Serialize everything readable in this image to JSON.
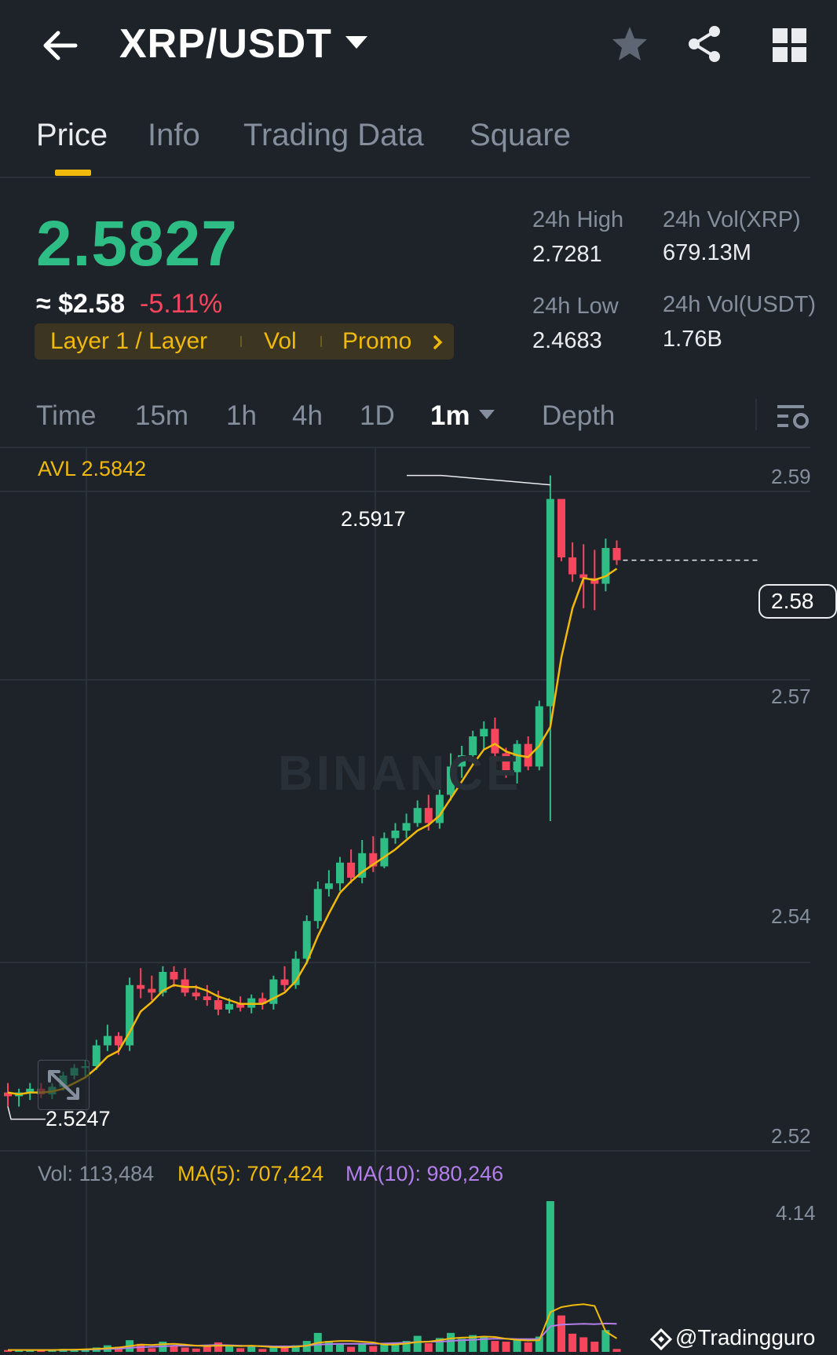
{
  "header": {
    "title": "XRP/USDT",
    "icons": [
      "back-arrow-icon",
      "caret-down-icon",
      "star-icon",
      "share-icon",
      "grid-icon"
    ]
  },
  "tabs": [
    {
      "label": "Price",
      "active": true
    },
    {
      "label": "Info"
    },
    {
      "label": "Trading Data"
    },
    {
      "label": "Square"
    }
  ],
  "price": {
    "last": "2.5827",
    "usd": "≈ $2.58",
    "change": "-5.11%"
  },
  "tags": {
    "layer": "Layer 1 / Layer",
    "vol": "Vol",
    "promo": "Promo"
  },
  "stats": {
    "high_label": "24h High",
    "high_value": "2.7281",
    "low_label": "24h Low",
    "low_value": "2.4683",
    "vol_xrp_label": "24h Vol(XRP)",
    "vol_xrp_value": "679.13M",
    "vol_usdt_label": "24h Vol(USDT)",
    "vol_usdt_value": "1.76B"
  },
  "intervals": {
    "time": "Time",
    "m15": "15m",
    "h1": "1h",
    "h4": "4h",
    "d1": "1D",
    "m1": "1m",
    "depth": "Depth"
  },
  "chart": {
    "avl": "AVL 2.5842",
    "y_labels": [
      "2.59",
      "2.57",
      "2.54",
      "2.52"
    ],
    "current_price_tag": "2.58",
    "high_marker": "2.5917",
    "low_marker": "2.5247",
    "watermark": "BINANCE",
    "vol_label": "Vol: 113,484",
    "ma5_label": "MA(5): 707,424",
    "ma10_label": "MA(10): 980,246",
    "vol_y_top": "4.14",
    "credit": "@Tradingguro",
    "colors": {
      "up": "#2ebd85",
      "down": "#f6465d",
      "ma5": "#f0b90b",
      "ma10": "#b37feb",
      "grid": "#2b3139"
    }
  },
  "chart_data": {
    "type": "candlestick",
    "ylim": [
      2.52,
      2.595
    ],
    "y_ticks": [
      2.59,
      2.57,
      2.54,
      2.52
    ],
    "candles": [
      {
        "o": 2.5262,
        "h": 2.5272,
        "l": 2.5247,
        "c": 2.5258
      },
      {
        "o": 2.5258,
        "h": 2.5266,
        "l": 2.5247,
        "c": 2.5262
      },
      {
        "o": 2.5262,
        "h": 2.5272,
        "l": 2.5254,
        "c": 2.5266
      },
      {
        "o": 2.5266,
        "h": 2.5272,
        "l": 2.5256,
        "c": 2.526
      },
      {
        "o": 2.526,
        "h": 2.5272,
        "l": 2.5255,
        "c": 2.5268
      },
      {
        "o": 2.5268,
        "h": 2.5284,
        "l": 2.5264,
        "c": 2.528
      },
      {
        "o": 2.528,
        "h": 2.5292,
        "l": 2.5276,
        "c": 2.5288
      },
      {
        "o": 2.5288,
        "h": 2.5296,
        "l": 2.5278,
        "c": 2.529
      },
      {
        "o": 2.529,
        "h": 2.5318,
        "l": 2.5286,
        "c": 2.5312
      },
      {
        "o": 2.5312,
        "h": 2.5334,
        "l": 2.5306,
        "c": 2.5322
      },
      {
        "o": 2.5322,
        "h": 2.5326,
        "l": 2.5302,
        "c": 2.5312
      },
      {
        "o": 2.5312,
        "h": 2.5384,
        "l": 2.5306,
        "c": 2.5376
      },
      {
        "o": 2.5376,
        "h": 2.5394,
        "l": 2.5362,
        "c": 2.5372
      },
      {
        "o": 2.5372,
        "h": 2.5386,
        "l": 2.536,
        "c": 2.5368
      },
      {
        "o": 2.5368,
        "h": 2.5396,
        "l": 2.5364,
        "c": 2.539
      },
      {
        "o": 2.539,
        "h": 2.5396,
        "l": 2.5374,
        "c": 2.5382
      },
      {
        "o": 2.5382,
        "h": 2.5394,
        "l": 2.5364,
        "c": 2.5368
      },
      {
        "o": 2.5368,
        "h": 2.5376,
        "l": 2.536,
        "c": 2.5364
      },
      {
        "o": 2.5364,
        "h": 2.5376,
        "l": 2.5354,
        "c": 2.536
      },
      {
        "o": 2.536,
        "h": 2.537,
        "l": 2.5344,
        "c": 2.535
      },
      {
        "o": 2.535,
        "h": 2.5362,
        "l": 2.5346,
        "c": 2.5356
      },
      {
        "o": 2.5356,
        "h": 2.5364,
        "l": 2.5348,
        "c": 2.5352
      },
      {
        "o": 2.5352,
        "h": 2.5366,
        "l": 2.5346,
        "c": 2.5362
      },
      {
        "o": 2.5362,
        "h": 2.5368,
        "l": 2.535,
        "c": 2.5356
      },
      {
        "o": 2.5356,
        "h": 2.5386,
        "l": 2.535,
        "c": 2.5382
      },
      {
        "o": 2.5382,
        "h": 2.5396,
        "l": 2.537,
        "c": 2.5376
      },
      {
        "o": 2.5376,
        "h": 2.5412,
        "l": 2.5372,
        "c": 2.5404
      },
      {
        "o": 2.5404,
        "h": 2.545,
        "l": 2.5398,
        "c": 2.5444
      },
      {
        "o": 2.5444,
        "h": 2.5486,
        "l": 2.5436,
        "c": 2.5478
      },
      {
        "o": 2.5478,
        "h": 2.5498,
        "l": 2.547,
        "c": 2.5484
      },
      {
        "o": 2.5484,
        "h": 2.5512,
        "l": 2.5476,
        "c": 2.5506
      },
      {
        "o": 2.5506,
        "h": 2.552,
        "l": 2.5484,
        "c": 2.549
      },
      {
        "o": 2.549,
        "h": 2.553,
        "l": 2.5484,
        "c": 2.5516
      },
      {
        "o": 2.5516,
        "h": 2.5534,
        "l": 2.5496,
        "c": 2.5502
      },
      {
        "o": 2.5502,
        "h": 2.5538,
        "l": 2.55,
        "c": 2.5532
      },
      {
        "o": 2.5532,
        "h": 2.5548,
        "l": 2.5526,
        "c": 2.554
      },
      {
        "o": 2.554,
        "h": 2.5558,
        "l": 2.5532,
        "c": 2.5548
      },
      {
        "o": 2.5548,
        "h": 2.5572,
        "l": 2.5544,
        "c": 2.5564
      },
      {
        "o": 2.5564,
        "h": 2.5578,
        "l": 2.554,
        "c": 2.5548
      },
      {
        "o": 2.5548,
        "h": 2.5586,
        "l": 2.5542,
        "c": 2.5578
      },
      {
        "o": 2.5578,
        "h": 2.5622,
        "l": 2.5572,
        "c": 2.5608
      },
      {
        "o": 2.5608,
        "h": 2.563,
        "l": 2.5596,
        "c": 2.562
      },
      {
        "o": 2.562,
        "h": 2.5646,
        "l": 2.561,
        "c": 2.564
      },
      {
        "o": 2.564,
        "h": 2.5656,
        "l": 2.5626,
        "c": 2.5648
      },
      {
        "o": 2.5648,
        "h": 2.566,
        "l": 2.5614,
        "c": 2.5622
      },
      {
        "o": 2.5622,
        "h": 2.5628,
        "l": 2.5596,
        "c": 2.5602
      },
      {
        "o": 2.5602,
        "h": 2.5636,
        "l": 2.559,
        "c": 2.5632
      },
      {
        "o": 2.5632,
        "h": 2.564,
        "l": 2.5604,
        "c": 2.5608
      },
      {
        "o": 2.5608,
        "h": 2.5678,
        "l": 2.5604,
        "c": 2.5672
      },
      {
        "o": 2.5672,
        "h": 2.5917,
        "l": 2.555,
        "c": 2.5892
      },
      {
        "o": 2.5892,
        "h": 2.5892,
        "l": 2.5826,
        "c": 2.583
      },
      {
        "o": 2.583,
        "h": 2.5846,
        "l": 2.5804,
        "c": 2.5812
      },
      {
        "o": 2.5812,
        "h": 2.5844,
        "l": 2.5776,
        "c": 2.5808
      },
      {
        "o": 2.5808,
        "h": 2.5838,
        "l": 2.5774,
        "c": 2.5802
      },
      {
        "o": 2.5802,
        "h": 2.585,
        "l": 2.5794,
        "c": 2.584
      },
      {
        "o": 2.584,
        "h": 2.5848,
        "l": 2.5822,
        "c": 2.5827
      }
    ],
    "ma_line": [
      2.5262,
      2.526,
      2.5262,
      2.5262,
      2.5263,
      2.5266,
      2.5272,
      2.5278,
      2.5288,
      2.53,
      2.5306,
      2.5326,
      2.5348,
      2.5358,
      2.537,
      2.5376,
      2.5374,
      2.5374,
      2.537,
      2.5364,
      2.536,
      2.5356,
      2.5356,
      2.5356,
      2.5362,
      2.5368,
      2.538,
      2.54,
      2.5428,
      2.5452,
      2.5474,
      2.5486,
      2.5496,
      2.5504,
      2.5512,
      2.552,
      2.553,
      2.554,
      2.5546,
      2.5556,
      2.5574,
      2.5592,
      2.561,
      2.5626,
      2.5632,
      2.5624,
      2.562,
      2.5618,
      2.563,
      2.565,
      2.5724,
      2.5776,
      2.5808,
      2.5806,
      2.581,
      2.5818
    ],
    "volume": {
      "ymax": 4.14,
      "bars": [
        0.05,
        0.04,
        0.05,
        0.04,
        0.06,
        0.08,
        0.07,
        0.06,
        0.12,
        0.18,
        0.14,
        0.32,
        0.22,
        0.1,
        0.28,
        0.16,
        0.12,
        0.09,
        0.14,
        0.26,
        0.16,
        0.1,
        0.14,
        0.08,
        0.16,
        0.12,
        0.18,
        0.3,
        0.52,
        0.3,
        0.22,
        0.14,
        0.24,
        0.16,
        0.2,
        0.26,
        0.3,
        0.44,
        0.24,
        0.38,
        0.52,
        0.36,
        0.46,
        0.4,
        0.3,
        0.28,
        0.34,
        0.26,
        0.42,
        4.14,
        1.0,
        0.5,
        0.4,
        0.28,
        0.6,
        0.08
      ],
      "ma5": [
        0.05,
        0.05,
        0.05,
        0.05,
        0.05,
        0.06,
        0.06,
        0.07,
        0.08,
        0.1,
        0.12,
        0.16,
        0.2,
        0.19,
        0.21,
        0.22,
        0.2,
        0.17,
        0.16,
        0.17,
        0.17,
        0.16,
        0.17,
        0.15,
        0.13,
        0.12,
        0.14,
        0.17,
        0.25,
        0.28,
        0.3,
        0.3,
        0.28,
        0.26,
        0.2,
        0.2,
        0.23,
        0.27,
        0.28,
        0.32,
        0.37,
        0.39,
        0.4,
        0.42,
        0.41,
        0.36,
        0.33,
        0.31,
        0.32,
        1.09,
        1.23,
        1.28,
        1.31,
        1.26,
        0.56,
        0.37
      ],
      "ma10": [
        0.05,
        0.05,
        0.05,
        0.05,
        0.05,
        0.05,
        0.06,
        0.06,
        0.07,
        0.08,
        0.09,
        0.11,
        0.13,
        0.14,
        0.15,
        0.17,
        0.17,
        0.17,
        0.18,
        0.19,
        0.18,
        0.17,
        0.16,
        0.16,
        0.15,
        0.15,
        0.15,
        0.17,
        0.2,
        0.21,
        0.22,
        0.22,
        0.22,
        0.22,
        0.23,
        0.24,
        0.25,
        0.27,
        0.28,
        0.28,
        0.3,
        0.32,
        0.33,
        0.35,
        0.36,
        0.36,
        0.35,
        0.35,
        0.35,
        0.7,
        0.75,
        0.76,
        0.77,
        0.76,
        0.78,
        0.77
      ]
    }
  }
}
